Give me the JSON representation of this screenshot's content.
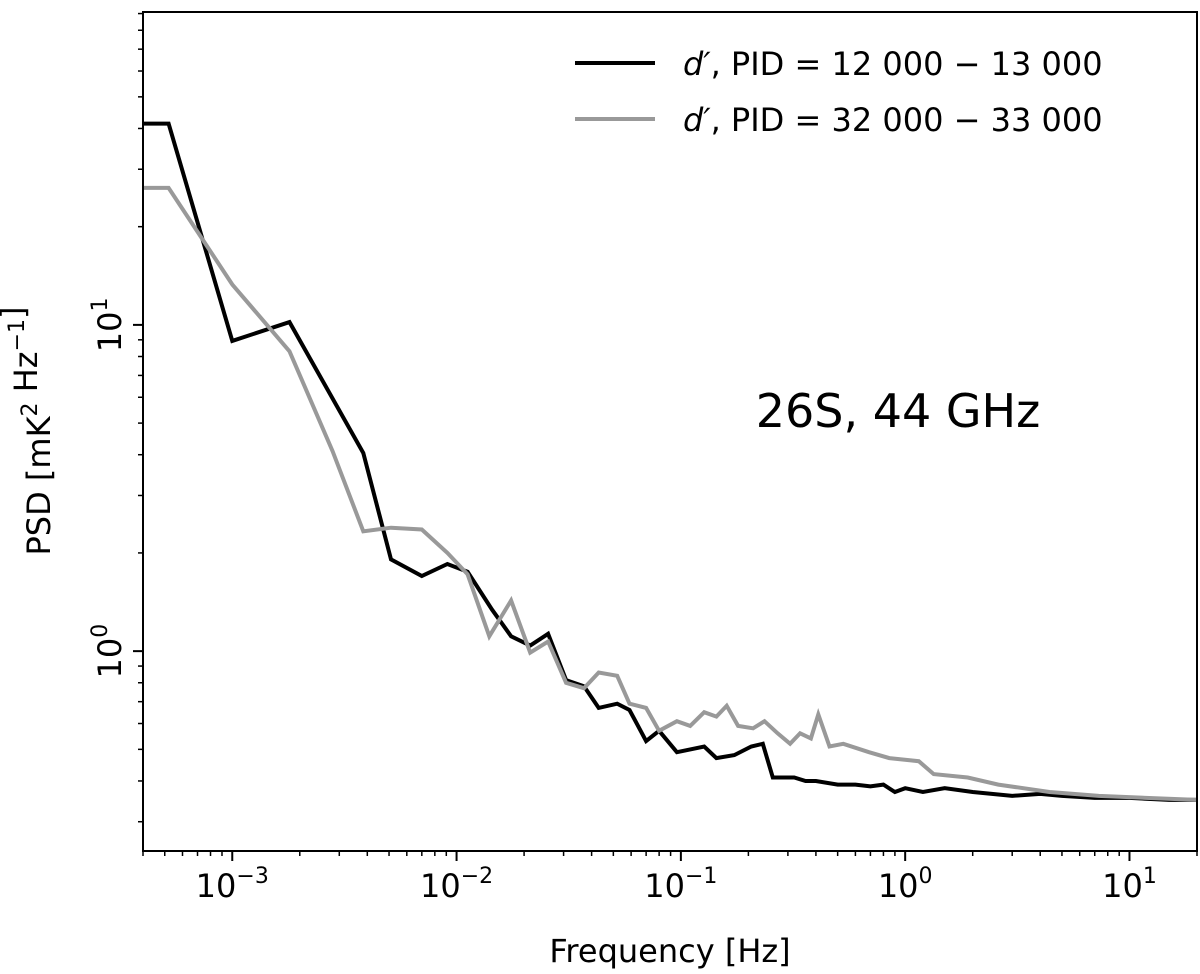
{
  "chart_data": {
    "type": "line",
    "title": "",
    "annotation": "26S, 44 GHz",
    "xlabel": "Frequency [Hz]",
    "ylabel": "PSD [mK^2 Hz^-1]",
    "xscale": "log",
    "yscale": "log",
    "xlim": [
      0.0004,
      20
    ],
    "ylim": [
      0.244,
      91
    ],
    "xticks": [
      {
        "value": 0.001,
        "label": "10^-3"
      },
      {
        "value": 0.01,
        "label": "10^-2"
      },
      {
        "value": 0.1,
        "label": "10^-1"
      },
      {
        "value": 1,
        "label": "10^0"
      },
      {
        "value": 10,
        "label": "10^1"
      }
    ],
    "yticks": [
      {
        "value": 1,
        "label": "10^0"
      },
      {
        "value": 10,
        "label": "10^1"
      }
    ],
    "grid": false,
    "legend_position": "top-right",
    "series": [
      {
        "name": "d′, PID = 12 000 − 13 000",
        "legend_var": "d′",
        "legend_rest": ", PID = 12 000 − 13 000",
        "color": "#000000",
        "x": [
          0.0004,
          0.00052,
          0.001,
          0.0018,
          0.00384,
          0.0051,
          0.007,
          0.0091,
          0.0112,
          0.0144,
          0.0175,
          0.0213,
          0.0256,
          0.0308,
          0.037,
          0.043,
          0.052,
          0.059,
          0.07,
          0.08,
          0.096,
          0.127,
          0.144,
          0.173,
          0.206,
          0.232,
          0.257,
          0.32,
          0.36,
          0.4,
          0.5,
          0.6,
          0.7,
          0.8,
          0.9,
          1.0,
          1.2,
          1.5,
          2,
          3,
          4,
          5,
          7,
          10,
          15,
          20
        ],
        "y": [
          41.4,
          41.4,
          8.93,
          10.2,
          4.05,
          1.91,
          1.7,
          1.85,
          1.75,
          1.34,
          1.11,
          1.04,
          1.13,
          0.815,
          0.78,
          0.67,
          0.69,
          0.66,
          0.53,
          0.57,
          0.49,
          0.51,
          0.47,
          0.48,
          0.51,
          0.52,
          0.41,
          0.41,
          0.4,
          0.4,
          0.39,
          0.39,
          0.385,
          0.39,
          0.37,
          0.38,
          0.37,
          0.38,
          0.37,
          0.36,
          0.365,
          0.36,
          0.355,
          0.355,
          0.35,
          0.35
        ]
      },
      {
        "name": "d′, PID = 32 000 − 33 000",
        "legend_var": "d′",
        "legend_rest": ", PID = 32 000 − 33 000",
        "color": "#999999",
        "x": [
          0.0004,
          0.00052,
          0.001,
          0.0018,
          0.0028,
          0.00384,
          0.0051,
          0.007,
          0.0091,
          0.0112,
          0.014,
          0.0175,
          0.0213,
          0.0256,
          0.0308,
          0.037,
          0.043,
          0.052,
          0.059,
          0.07,
          0.08,
          0.096,
          0.11,
          0.127,
          0.144,
          0.16,
          0.18,
          0.21,
          0.236,
          0.27,
          0.307,
          0.34,
          0.38,
          0.41,
          0.46,
          0.53,
          0.69,
          0.85,
          1.15,
          1.34,
          1.9,
          2.6,
          4.4,
          7.3,
          20
        ],
        "y": [
          26.3,
          26.3,
          13.3,
          8.3,
          4.1,
          2.33,
          2.39,
          2.36,
          2.0,
          1.72,
          1.11,
          1.43,
          0.99,
          1.07,
          0.8,
          0.77,
          0.86,
          0.84,
          0.69,
          0.67,
          0.57,
          0.61,
          0.59,
          0.65,
          0.63,
          0.68,
          0.59,
          0.58,
          0.61,
          0.56,
          0.52,
          0.56,
          0.54,
          0.64,
          0.51,
          0.52,
          0.49,
          0.47,
          0.46,
          0.42,
          0.41,
          0.39,
          0.37,
          0.36,
          0.35
        ]
      }
    ]
  }
}
